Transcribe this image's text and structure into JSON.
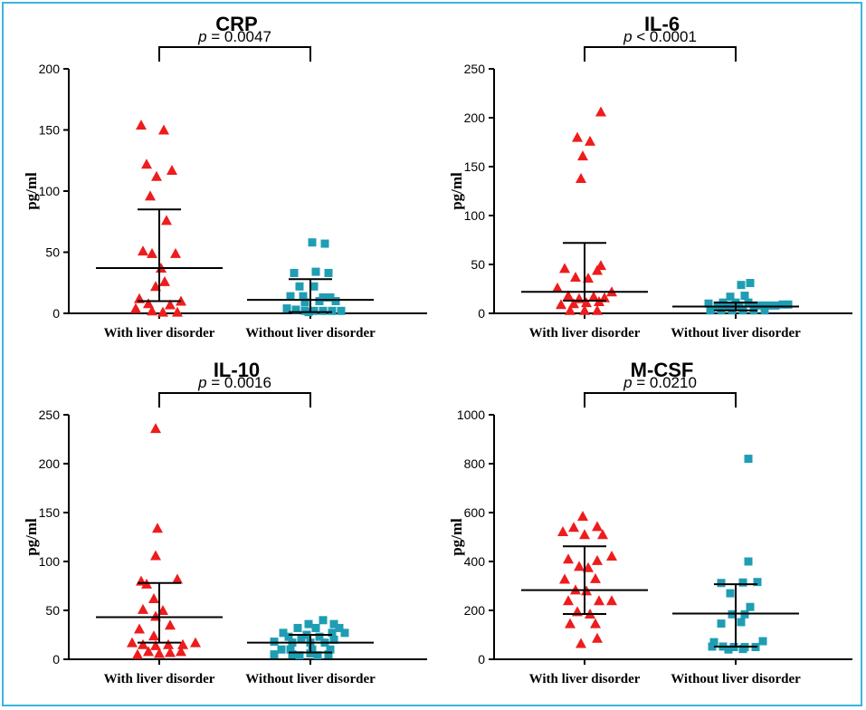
{
  "colors": {
    "border": "#3cb4e0",
    "group1": "#ee1c1c",
    "group2": "#1f9db3",
    "axis": "#000000"
  },
  "chart_data": [
    {
      "type": "scatter",
      "title": "CRP",
      "p_prefix": "p",
      "p_text": " = 0.0047",
      "ylabel": "pg/ml",
      "ylim": [
        0,
        200
      ],
      "yticks": [
        0,
        50,
        100,
        150,
        200
      ],
      "categories": [
        "With liver disorder",
        "Without liver disorder"
      ],
      "series": [
        {
          "name": "With liver disorder",
          "marker": "triangle",
          "color": "#ee1c1c",
          "median": 37,
          "q1": 10,
          "q3": 85,
          "points": [
            [
              -20,
              154
            ],
            [
              5,
              150
            ],
            [
              -14,
              122
            ],
            [
              -3,
              112
            ],
            [
              14,
              117
            ],
            [
              -10,
              96
            ],
            [
              8,
              76
            ],
            [
              -18,
              51
            ],
            [
              -8,
              49
            ],
            [
              18,
              49
            ],
            [
              2,
              37
            ],
            [
              -4,
              22
            ],
            [
              6,
              26
            ],
            [
              -22,
              12
            ],
            [
              -12,
              8
            ],
            [
              12,
              7
            ],
            [
              24,
              10
            ],
            [
              -8,
              2
            ],
            [
              4,
              1
            ],
            [
              20,
              1
            ],
            [
              -26,
              4
            ]
          ]
        },
        {
          "name": "Without liver disorder",
          "marker": "square",
          "color": "#1f9db3",
          "median": 11,
          "q1": 1,
          "q3": 28,
          "points": [
            [
              2,
              58
            ],
            [
              16,
              57
            ],
            [
              -18,
              33
            ],
            [
              6,
              34
            ],
            [
              20,
              33
            ],
            [
              -12,
              22
            ],
            [
              4,
              22
            ],
            [
              -8,
              14
            ],
            [
              -22,
              14
            ],
            [
              14,
              13
            ],
            [
              22,
              13
            ],
            [
              -6,
              9
            ],
            [
              10,
              10
            ],
            [
              28,
              10
            ],
            [
              -26,
              4
            ],
            [
              -16,
              3
            ],
            [
              -6,
              2
            ],
            [
              4,
              2
            ],
            [
              14,
              2
            ],
            [
              24,
              2
            ],
            [
              34,
              2
            ],
            [
              -2,
              1
            ]
          ]
        }
      ]
    },
    {
      "type": "scatter",
      "title": "IL-6",
      "p_prefix": "p",
      "p_text": " < 0.0001",
      "ylabel": "pg/ml",
      "ylim": [
        0,
        250
      ],
      "yticks": [
        0,
        50,
        100,
        150,
        200,
        250
      ],
      "categories": [
        "With liver disorder",
        "Without liver disorder"
      ],
      "series": [
        {
          "name": "With liver disorder",
          "marker": "triangle",
          "color": "#ee1c1c",
          "median": 22,
          "q1": 13,
          "q3": 72,
          "points": [
            [
              18,
              206
            ],
            [
              -8,
              180
            ],
            [
              6,
              176
            ],
            [
              -2,
              161
            ],
            [
              -4,
              138
            ],
            [
              -22,
              46
            ],
            [
              18,
              49
            ],
            [
              -10,
              37
            ],
            [
              4,
              36
            ],
            [
              14,
              44
            ],
            [
              -30,
              26
            ],
            [
              30,
              22
            ],
            [
              -18,
              18
            ],
            [
              -6,
              15
            ],
            [
              10,
              17
            ],
            [
              22,
              16
            ],
            [
              -26,
              9
            ],
            [
              -12,
              10
            ],
            [
              2,
              11
            ],
            [
              16,
              12
            ],
            [
              -16,
              3
            ],
            [
              0,
              3
            ],
            [
              14,
              3
            ]
          ]
        },
        {
          "name": "Without liver disorder",
          "marker": "square",
          "color": "#1f9db3",
          "median": 7,
          "q1": 3,
          "q3": 11,
          "points": [
            [
              16,
              31
            ],
            [
              6,
              29
            ],
            [
              -6,
              17
            ],
            [
              10,
              18
            ],
            [
              -14,
              11
            ],
            [
              0,
              11
            ],
            [
              14,
              11
            ],
            [
              -30,
              10
            ],
            [
              -20,
              8
            ],
            [
              -8,
              7
            ],
            [
              4,
              8
            ],
            [
              20,
              8
            ],
            [
              28,
              8
            ],
            [
              36,
              8
            ],
            [
              44,
              8
            ],
            [
              52,
              9
            ],
            [
              58,
              9
            ],
            [
              -28,
              3
            ],
            [
              -16,
              3
            ],
            [
              -4,
              3
            ],
            [
              8,
              3
            ],
            [
              20,
              3
            ],
            [
              32,
              3
            ]
          ]
        }
      ]
    },
    {
      "type": "scatter",
      "title": "IL-10",
      "p_prefix": "p",
      "p_text": " = 0.0016",
      "ylabel": "pg/ml",
      "ylim": [
        0,
        250
      ],
      "yticks": [
        0,
        50,
        100,
        150,
        200,
        250
      ],
      "categories": [
        "With liver disorder",
        "Without liver disorder"
      ],
      "series": [
        {
          "name": "With liver disorder",
          "marker": "triangle",
          "color": "#ee1c1c",
          "median": 43,
          "q1": 17,
          "q3": 78,
          "points": [
            [
              -4,
              236
            ],
            [
              -2,
              134
            ],
            [
              -4,
              106
            ],
            [
              -20,
              80
            ],
            [
              20,
              82
            ],
            [
              -14,
              77
            ],
            [
              -6,
              62
            ],
            [
              -18,
              51
            ],
            [
              4,
              50
            ],
            [
              -4,
              44
            ],
            [
              12,
              35
            ],
            [
              -22,
              31
            ],
            [
              -6,
              24
            ],
            [
              -30,
              17
            ],
            [
              -18,
              15
            ],
            [
              -4,
              14
            ],
            [
              10,
              15
            ],
            [
              26,
              15
            ],
            [
              40,
              17
            ],
            [
              -12,
              8
            ],
            [
              0,
              6
            ],
            [
              12,
              7
            ],
            [
              24,
              8
            ],
            [
              -24,
              5
            ]
          ]
        },
        {
          "name": "Without liver disorder",
          "marker": "square",
          "color": "#1f9db3",
          "median": 17,
          "q1": 7,
          "q3": 25,
          "points": [
            [
              14,
              40
            ],
            [
              -2,
              36
            ],
            [
              26,
              36
            ],
            [
              -14,
              32
            ],
            [
              6,
              32
            ],
            [
              32,
              32
            ],
            [
              -30,
              27
            ],
            [
              -4,
              25
            ],
            [
              24,
              27
            ],
            [
              38,
              27
            ],
            [
              -24,
              23
            ],
            [
              10,
              23
            ],
            [
              -10,
              21
            ],
            [
              26,
              20
            ],
            [
              -40,
              18
            ],
            [
              -20,
              17
            ],
            [
              0,
              17
            ],
            [
              16,
              17
            ],
            [
              -32,
              10
            ],
            [
              -22,
              10
            ],
            [
              2,
              10
            ],
            [
              22,
              10
            ],
            [
              -40,
              5
            ],
            [
              -20,
              5
            ],
            [
              0,
              6
            ],
            [
              20,
              5
            ],
            [
              -12,
              4
            ],
            [
              8,
              4
            ]
          ]
        }
      ]
    },
    {
      "type": "scatter",
      "title": "M-CSF",
      "p_prefix": "p",
      "p_text": " = 0.0210",
      "ylabel": "pg/ml",
      "ylim": [
        0,
        1000
      ],
      "yticks": [
        0,
        200,
        400,
        600,
        800,
        1000
      ],
      "categories": [
        "With liver disorder",
        "Without liver disorder"
      ],
      "series": [
        {
          "name": "With liver disorder",
          "marker": "triangle",
          "color": "#ee1c1c",
          "median": 283,
          "q1": 185,
          "q3": 462,
          "points": [
            [
              -2,
              585
            ],
            [
              -12,
              540
            ],
            [
              14,
              543
            ],
            [
              -24,
              522
            ],
            [
              0,
              510
            ],
            [
              20,
              510
            ],
            [
              -18,
              410
            ],
            [
              14,
              404
            ],
            [
              30,
              422
            ],
            [
              -6,
              380
            ],
            [
              4,
              375
            ],
            [
              -22,
              328
            ],
            [
              12,
              330
            ],
            [
              -10,
              284
            ],
            [
              2,
              280
            ],
            [
              -18,
              240
            ],
            [
              16,
              240
            ],
            [
              30,
              240
            ],
            [
              -8,
              195
            ],
            [
              6,
              185
            ],
            [
              -16,
              146
            ],
            [
              12,
              146
            ],
            [
              -4,
              65
            ],
            [
              14,
              86
            ]
          ]
        },
        {
          "name": "Without liver disorder",
          "marker": "square",
          "color": "#1f9db3",
          "median": 187,
          "q1": 52,
          "q3": 307,
          "points": [
            [
              14,
              820
            ],
            [
              14,
              400
            ],
            [
              -16,
              312
            ],
            [
              8,
              314
            ],
            [
              24,
              316
            ],
            [
              -6,
              270
            ],
            [
              16,
              214
            ],
            [
              -4,
              184
            ],
            [
              10,
              184
            ],
            [
              -16,
              146
            ],
            [
              6,
              152
            ],
            [
              -24,
              70
            ],
            [
              30,
              74
            ],
            [
              -26,
              52
            ],
            [
              -14,
              52
            ],
            [
              -2,
              50
            ],
            [
              10,
              50
            ],
            [
              22,
              50
            ],
            [
              -8,
              40
            ],
            [
              8,
              42
            ]
          ]
        }
      ]
    }
  ]
}
